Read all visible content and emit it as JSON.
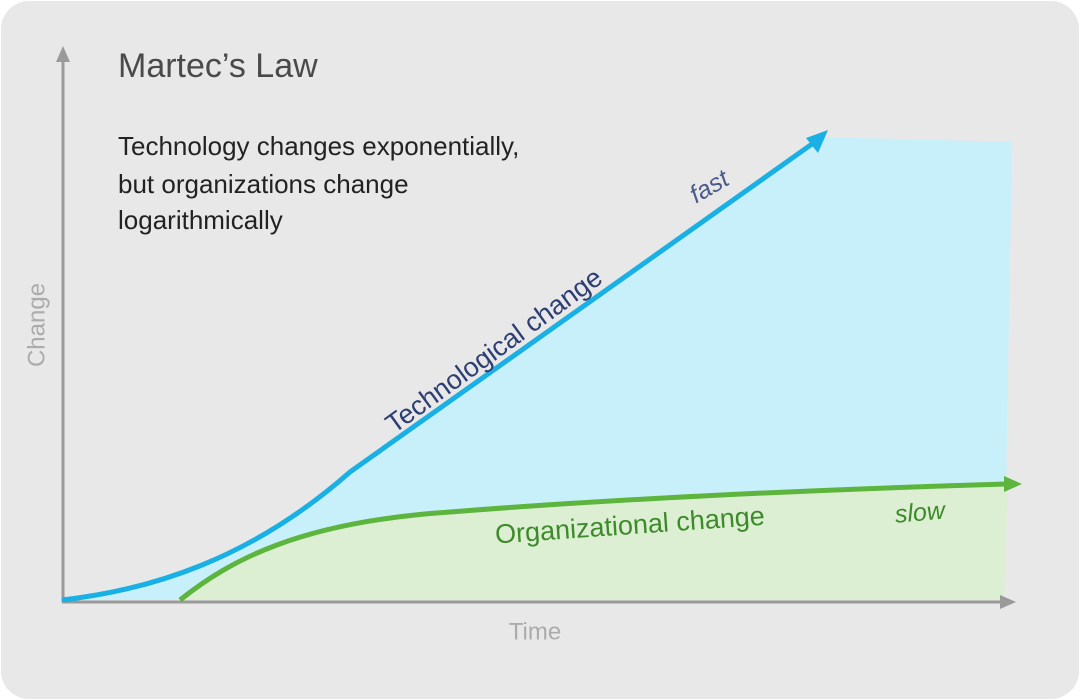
{
  "title": "Martec’s Law",
  "subtitle": [
    "Technology changes exponentially,",
    "but organizations change",
    "logarithmically"
  ],
  "curves": {
    "technology": {
      "label": "Technological change",
      "speed": "fast"
    },
    "organization": {
      "label": "Organizational change",
      "speed": "slow"
    }
  },
  "axes": {
    "y": "Change",
    "x": "Time"
  }
}
